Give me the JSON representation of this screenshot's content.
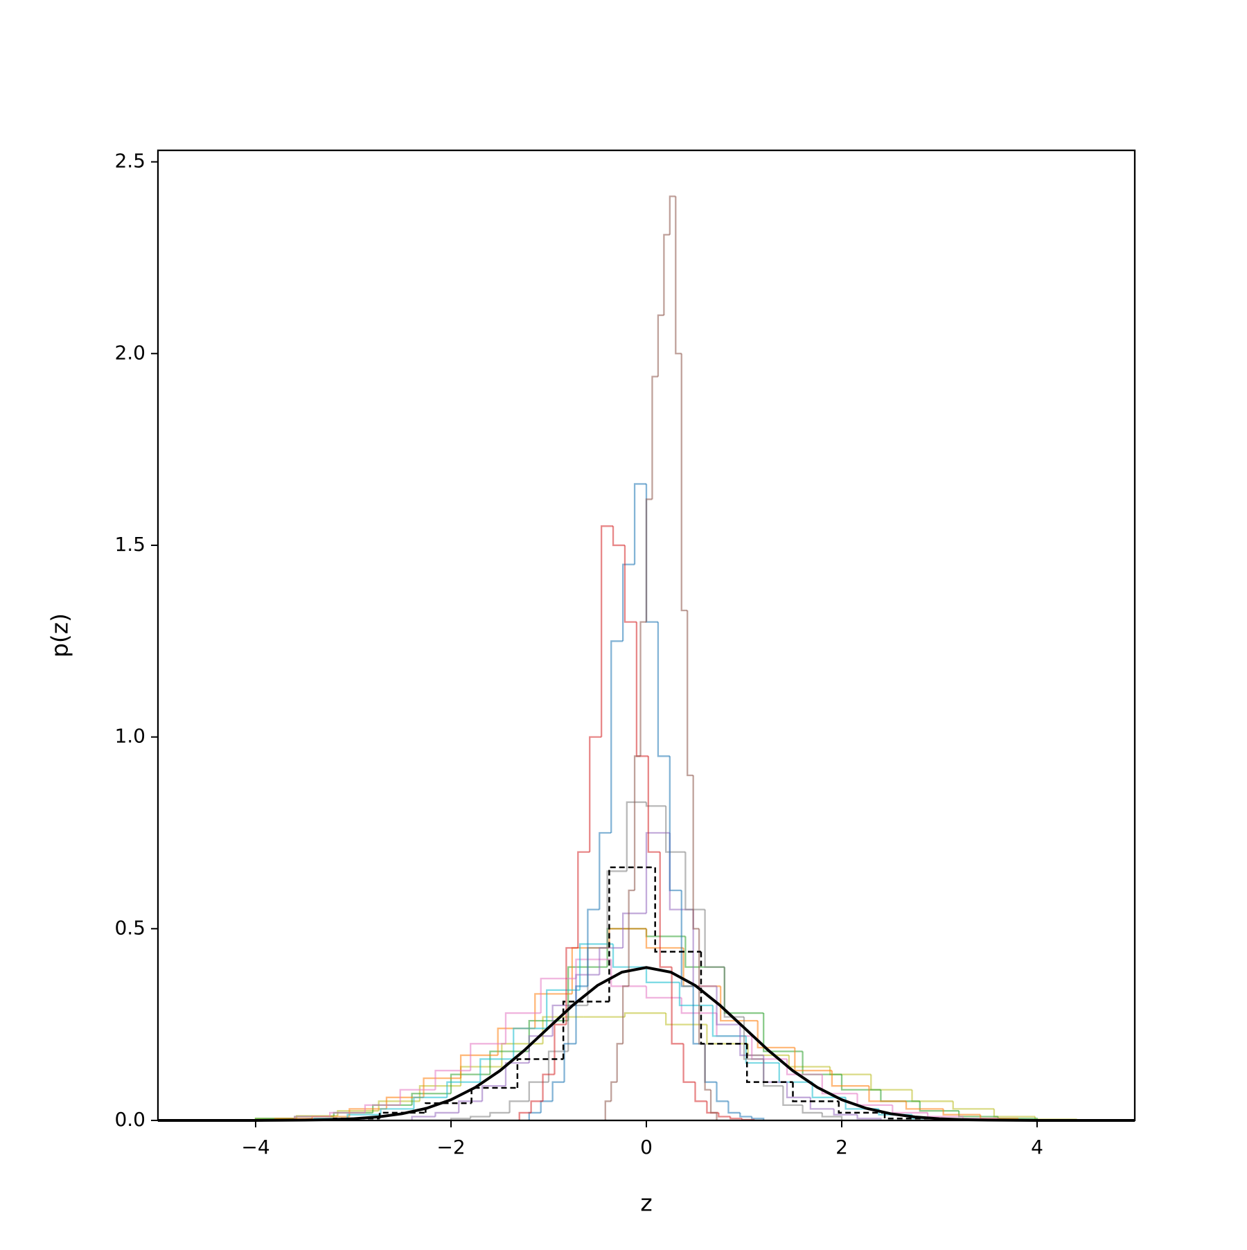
{
  "chart_data": {
    "type": "histogram",
    "xlabel": "z",
    "ylabel": "p(z)",
    "xlim": [
      -5,
      5
    ],
    "ylim": [
      0,
      2.53
    ],
    "xticks": [
      {
        "value": -4,
        "label": "−4"
      },
      {
        "value": -2,
        "label": "−2"
      },
      0,
      2,
      4
    ],
    "yticks": [
      {
        "value": 0,
        "label": "0.0"
      },
      0.5,
      {
        "value": 1,
        "label": "1.0"
      },
      1.5,
      {
        "value": 2,
        "label": "2.0"
      },
      2.5
    ],
    "series": [
      {
        "color": "#bcbd22",
        "bins": [
          -4,
          -3.58,
          -3.16,
          -2.74,
          -2.32,
          -1.9,
          -1.48,
          -1.06,
          -0.64,
          -0.22,
          0.2,
          0.62,
          1.04,
          1.46,
          1.88,
          2.3,
          2.72,
          3.14,
          3.56,
          3.98,
          4.4
        ],
        "values": [
          0.005,
          0.012,
          0.025,
          0.05,
          0.09,
          0.14,
          0.2,
          0.27,
          0.27,
          0.28,
          0.25,
          0.2,
          0.17,
          0.14,
          0.12,
          0.08,
          0.05,
          0.03,
          0.01,
          0.003
        ]
      },
      {
        "color": "#2ca02c",
        "bins": [
          -4,
          -3.6,
          -3.2,
          -2.8,
          -2.4,
          -2,
          -1.6,
          -1.2,
          -0.8,
          -0.4,
          0,
          0.4,
          0.8,
          1.2,
          1.6,
          2,
          2.4,
          2.8,
          3.2,
          3.6,
          4
        ],
        "values": [
          0.005,
          0.01,
          0.02,
          0.04,
          0.07,
          0.12,
          0.18,
          0.26,
          0.4,
          0.5,
          0.48,
          0.4,
          0.28,
          0.18,
          0.12,
          0.08,
          0.05,
          0.025,
          0.01,
          0.005
        ]
      },
      {
        "color": "#ff7f0e",
        "bins": [
          -3.8,
          -3.42,
          -3.04,
          -2.66,
          -2.28,
          -1.9,
          -1.52,
          -1.14,
          -0.76,
          -0.38,
          0,
          0.38,
          0.76,
          1.14,
          1.52,
          1.9,
          2.28,
          2.66,
          3.04,
          3.42,
          3.8
        ],
        "values": [
          0.005,
          0.01,
          0.03,
          0.06,
          0.11,
          0.17,
          0.24,
          0.33,
          0.45,
          0.5,
          0.45,
          0.35,
          0.26,
          0.19,
          0.13,
          0.09,
          0.05,
          0.03,
          0.015,
          0.005
        ]
      },
      {
        "color": "#e377c2",
        "bins": [
          -3.6,
          -3.24,
          -2.88,
          -2.52,
          -2.16,
          -1.8,
          -1.44,
          -1.08,
          -0.72,
          -0.36,
          0,
          0.36,
          0.72,
          1.08,
          1.44,
          1.8,
          2.16,
          2.52,
          2.88,
          3.24,
          3.6
        ],
        "values": [
          0.01,
          0.02,
          0.04,
          0.08,
          0.13,
          0.2,
          0.28,
          0.37,
          0.42,
          0.35,
          0.32,
          0.28,
          0.22,
          0.16,
          0.12,
          0.07,
          0.04,
          0.02,
          0.01,
          0.005
        ]
      },
      {
        "color": "#17becf",
        "bins": [
          -3.4,
          -3.06,
          -2.72,
          -2.38,
          -2.04,
          -1.7,
          -1.36,
          -1.02,
          -0.68,
          -0.34,
          0,
          0.34,
          0.68,
          1.02,
          1.36,
          1.7,
          2.04,
          2.38,
          2.72,
          3.06,
          3.4
        ],
        "values": [
          0.005,
          0.015,
          0.03,
          0.06,
          0.1,
          0.16,
          0.24,
          0.34,
          0.46,
          0.4,
          0.36,
          0.3,
          0.22,
          0.15,
          0.1,
          0.06,
          0.03,
          0.015,
          0.005,
          0.002
        ]
      },
      {
        "color": "#9467bd",
        "bins": [
          -2.4,
          -2.16,
          -1.92,
          -1.68,
          -1.44,
          -1.2,
          -0.96,
          -0.72,
          -0.48,
          -0.24,
          0,
          0.24,
          0.48,
          0.72,
          0.96,
          1.2,
          1.44,
          1.68,
          1.92,
          2.16,
          2.4
        ],
        "values": [
          0.01,
          0.02,
          0.05,
          0.09,
          0.15,
          0.22,
          0.3,
          0.38,
          0.45,
          0.54,
          0.75,
          0.55,
          0.35,
          0.25,
          0.17,
          0.1,
          0.06,
          0.03,
          0.015,
          0.005
        ]
      },
      {
        "color": "#7f7f7f",
        "bins": [
          -2,
          -1.8,
          -1.6,
          -1.4,
          -1.2,
          -1,
          -0.8,
          -0.6,
          -0.4,
          -0.2,
          0,
          0.2,
          0.4,
          0.6,
          0.8,
          1,
          1.2,
          1.4,
          1.6,
          1.8,
          2
        ],
        "values": [
          0.005,
          0.01,
          0.02,
          0.05,
          0.1,
          0.18,
          0.3,
          0.45,
          0.65,
          0.83,
          0.82,
          0.7,
          0.55,
          0.4,
          0.27,
          0.16,
          0.09,
          0.04,
          0.02,
          0.01
        ]
      },
      {
        "color": "#1f77b4",
        "bins": [
          -1.2,
          -1.08,
          -0.96,
          -0.84,
          -0.72,
          -0.6,
          -0.48,
          -0.36,
          -0.24,
          -0.12,
          0,
          0.12,
          0.24,
          0.36,
          0.48,
          0.6,
          0.72,
          0.84,
          0.96,
          1.08,
          1.2
        ],
        "values": [
          0.02,
          0.05,
          0.1,
          0.2,
          0.35,
          0.55,
          0.75,
          1.25,
          1.45,
          1.66,
          1.3,
          0.95,
          0.6,
          0.35,
          0.2,
          0.1,
          0.05,
          0.02,
          0.01,
          0.005
        ]
      },
      {
        "color": "#d62728",
        "bins": [
          -1.3,
          -1.18,
          -1.06,
          -0.94,
          -0.82,
          -0.7,
          -0.58,
          -0.46,
          -0.34,
          -0.22,
          -0.1,
          0.02,
          0.14,
          0.26,
          0.38,
          0.5,
          0.62,
          0.74,
          0.86,
          0.98,
          1.1
        ],
        "values": [
          0.02,
          0.05,
          0.12,
          0.25,
          0.45,
          0.7,
          1.0,
          1.55,
          1.5,
          1.3,
          0.95,
          0.7,
          0.4,
          0.2,
          0.1,
          0.05,
          0.02,
          0.01,
          0.005,
          0.002
        ]
      },
      {
        "color": "#8c564b",
        "bins": [
          -0.42,
          -0.36,
          -0.3,
          -0.24,
          -0.18,
          -0.12,
          -0.06,
          0,
          0.06,
          0.12,
          0.18,
          0.24,
          0.3,
          0.36,
          0.42,
          0.48,
          0.54,
          0.6,
          0.66,
          0.72
        ],
        "values": [
          0.05,
          0.1,
          0.2,
          0.35,
          0.6,
          0.95,
          1.3,
          1.62,
          1.94,
          2.1,
          2.31,
          2.41,
          2.0,
          1.33,
          0.9,
          0.5,
          0.2,
          0.08,
          0.02
        ]
      },
      {
        "color": "#000000",
        "dashed": true,
        "bins": [
          -3.2,
          -2.73,
          -2.26,
          -1.79,
          -1.32,
          -0.85,
          -0.38,
          0.09,
          0.56,
          1.03,
          1.5,
          1.97,
          2.44,
          2.91
        ],
        "values": [
          0.005,
          0.02,
          0.045,
          0.085,
          0.16,
          0.31,
          0.66,
          0.44,
          0.2,
          0.1,
          0.05,
          0.02,
          0.005
        ]
      },
      {
        "type": "line",
        "color": "#000000",
        "x": [
          -5,
          -4.75,
          -4.5,
          -4.25,
          -4,
          -3.75,
          -3.5,
          -3.25,
          -3,
          -2.75,
          -2.5,
          -2.25,
          -2,
          -1.75,
          -1.5,
          -1.25,
          -1,
          -0.75,
          -0.5,
          -0.25,
          0,
          0.25,
          0.5,
          0.75,
          1,
          1.25,
          1.5,
          1.75,
          2,
          2.25,
          2.5,
          2.75,
          3,
          3.25,
          3.5,
          3.75,
          4,
          4.25,
          4.5,
          4.75,
          5
        ],
        "values": [
          0,
          0,
          0,
          0,
          0.0001,
          0.0004,
          0.0009,
          0.002,
          0.0044,
          0.0091,
          0.0175,
          0.0317,
          0.054,
          0.0863,
          0.1295,
          0.1826,
          0.242,
          0.3011,
          0.3521,
          0.3867,
          0.3989,
          0.3867,
          0.3521,
          0.3011,
          0.242,
          0.1826,
          0.1295,
          0.0863,
          0.054,
          0.0317,
          0.0175,
          0.0091,
          0.0044,
          0.002,
          0.0009,
          0.0004,
          0.0001,
          0,
          0,
          0,
          0
        ]
      }
    ]
  }
}
